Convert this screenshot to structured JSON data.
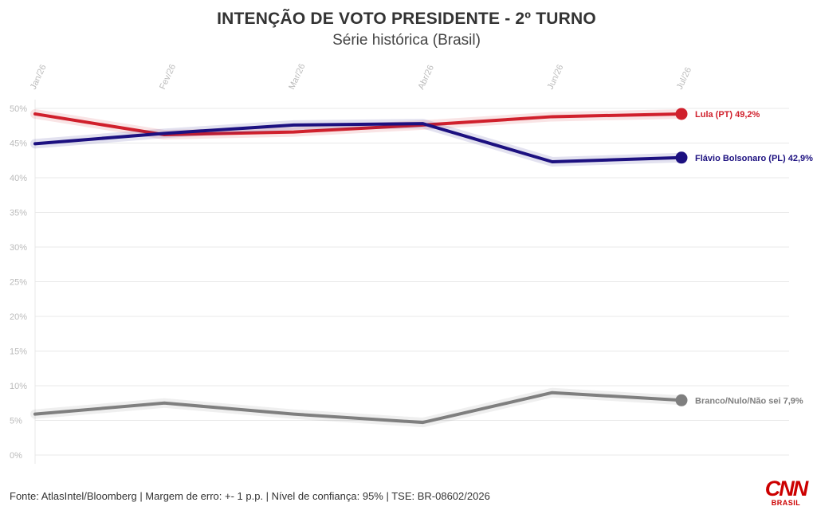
{
  "header": {
    "title": "INTENÇÃO DE VOTO PRESIDENTE - 2º TURNO",
    "subtitle": "Série histórica (Brasil)"
  },
  "footer": {
    "source": "Fonte: AtlasIntel/Bloomberg | Margem de erro: +- 1 p.p. | Nível de confiança: 95% | TSE: BR-08602/2026"
  },
  "logo": {
    "main": "CNN",
    "sub": "BRASIL"
  },
  "colors": {
    "lula": "#d0202c",
    "flavio": "#1c1080",
    "branco": "#7f7f7f",
    "grid": "#e8e8e8",
    "tick": "#bbbbbb"
  },
  "chart_data": {
    "type": "line",
    "categories": [
      "Jan/26",
      "Fev/26",
      "Mar/26",
      "Abr/26",
      "Jun/26",
      "Jul/26"
    ],
    "ylim": [
      0,
      50
    ],
    "yticks": [
      0,
      5,
      10,
      15,
      20,
      25,
      30,
      35,
      40,
      45,
      50
    ],
    "ytick_labels": [
      "0%",
      "5%",
      "10%",
      "15%",
      "20%",
      "25%",
      "30%",
      "35%",
      "40%",
      "45%",
      "50%"
    ],
    "grid": true,
    "series": [
      {
        "name": "Lula (PT)",
        "label": "Lula (PT) 49,2%",
        "color_key": "lula",
        "values": [
          49.2,
          46.2,
          46.6,
          47.6,
          48.8,
          49.2
        ]
      },
      {
        "name": "Flávio Bolsonaro (PL)",
        "label": "Flávio Bolsonaro (PL) 42,9%",
        "color_key": "flavio",
        "values": [
          44.9,
          46.4,
          47.6,
          47.8,
          42.3,
          42.9
        ]
      },
      {
        "name": "Branco/Nulo/Não sei",
        "label": "Branco/Nulo/Não sei 7,9%",
        "color_key": "branco",
        "values": [
          5.9,
          7.5,
          5.9,
          4.7,
          9.0,
          7.9
        ]
      }
    ]
  }
}
